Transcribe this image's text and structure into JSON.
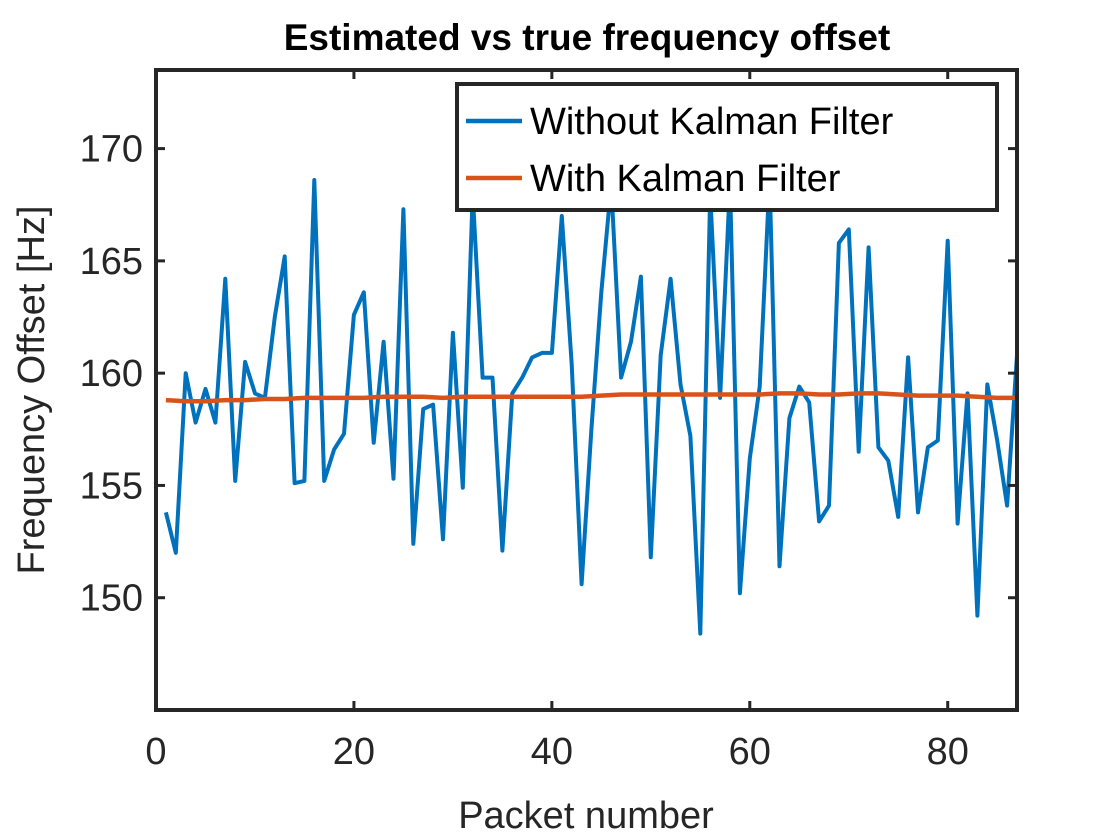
{
  "chart_data": {
    "type": "line",
    "title": "Estimated vs true frequency offset",
    "xlabel": "Packet number",
    "ylabel": "Frequency Offset [Hz]",
    "xlim": [
      0,
      87
    ],
    "ylim": [
      145,
      173.5
    ],
    "xticks": [
      0,
      20,
      40,
      60,
      80
    ],
    "yticks": [
      150,
      155,
      160,
      165,
      170
    ],
    "grid": false,
    "legend_position": "top-right",
    "series": [
      {
        "name": "Without Kalman Filter",
        "color": "#0072BD",
        "x": [
          1,
          2,
          3,
          4,
          5,
          6,
          7,
          8,
          9,
          10,
          11,
          12,
          13,
          14,
          15,
          16,
          17,
          18,
          19,
          20,
          21,
          22,
          23,
          24,
          25,
          26,
          27,
          28,
          29,
          30,
          31,
          32,
          33,
          34,
          35,
          36,
          37,
          38,
          39,
          40,
          41,
          42,
          43,
          44,
          45,
          46,
          47,
          48,
          49,
          50,
          51,
          52,
          53,
          54,
          55,
          56,
          57,
          58,
          59,
          60,
          61,
          62,
          63,
          64,
          65,
          66,
          67,
          68,
          69,
          70,
          71,
          72,
          73,
          74,
          75,
          76,
          77,
          78,
          79,
          80,
          81,
          82,
          83,
          84,
          85,
          86,
          87
        ],
        "values": [
          153.8,
          152.0,
          160.0,
          157.8,
          159.3,
          157.8,
          164.2,
          155.2,
          160.5,
          159.1,
          158.9,
          162.5,
          165.2,
          155.1,
          155.2,
          168.6,
          155.2,
          156.6,
          157.3,
          162.6,
          163.6,
          156.9,
          161.4,
          155.3,
          167.3,
          152.4,
          158.4,
          158.6,
          152.6,
          161.8,
          154.9,
          168.0,
          159.8,
          159.8,
          152.1,
          159.1,
          159.8,
          160.7,
          160.9,
          160.9,
          167.0,
          160.4,
          150.6,
          157.5,
          163.6,
          168.4,
          159.8,
          161.4,
          164.3,
          151.8,
          160.8,
          164.2,
          159.5,
          157.2,
          148.4,
          168.0,
          158.9,
          168.5,
          150.2,
          156.2,
          159.4,
          168.7,
          151.4,
          158.0,
          159.4,
          158.7,
          153.4,
          154.1,
          165.8,
          166.4,
          156.5,
          165.6,
          156.7,
          156.1,
          153.6,
          160.7,
          153.8,
          156.7,
          157.0,
          165.9,
          153.3,
          159.1,
          149.2,
          159.5,
          157.0,
          154.1,
          160.8
        ]
      },
      {
        "name": "With Kalman Filter",
        "color": "#D95319",
        "x": [
          1,
          3,
          5,
          7,
          9,
          11,
          13,
          15,
          17,
          19,
          21,
          23,
          25,
          27,
          29,
          31,
          33,
          35,
          37,
          39,
          41,
          43,
          45,
          47,
          49,
          51,
          53,
          55,
          57,
          59,
          61,
          63,
          65,
          67,
          69,
          71,
          73,
          75,
          77,
          79,
          81,
          83,
          85,
          87
        ],
        "values": [
          158.8,
          158.75,
          158.75,
          158.8,
          158.8,
          158.85,
          158.85,
          158.9,
          158.9,
          158.9,
          158.9,
          158.95,
          158.95,
          158.95,
          158.9,
          158.95,
          158.95,
          158.95,
          158.95,
          158.95,
          158.95,
          158.95,
          159.0,
          159.05,
          159.05,
          159.05,
          159.05,
          159.05,
          159.05,
          159.05,
          159.05,
          159.1,
          159.1,
          159.05,
          159.05,
          159.1,
          159.1,
          159.05,
          159.0,
          159.0,
          159.0,
          158.95,
          158.9,
          158.9
        ]
      }
    ]
  }
}
